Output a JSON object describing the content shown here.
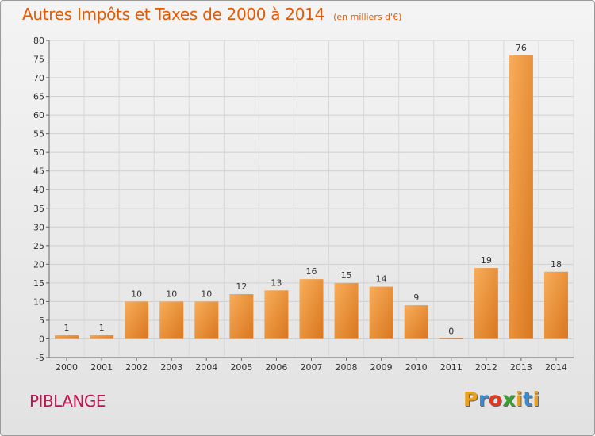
{
  "chart_data": {
    "type": "bar",
    "title": "Autres Impôts et Taxes de 2000 à 2014",
    "subtitle": "(en milliers d'€)",
    "categories": [
      "2000",
      "2001",
      "2002",
      "2003",
      "2004",
      "2005",
      "2006",
      "2007",
      "2008",
      "2009",
      "2010",
      "2011",
      "2012",
      "2013",
      "2014"
    ],
    "values": [
      1,
      1,
      10,
      10,
      10,
      12,
      13,
      16,
      15,
      14,
      9,
      0,
      19,
      76,
      18
    ],
    "ylim": [
      -5,
      80
    ],
    "yticks": [
      -5,
      0,
      5,
      10,
      15,
      20,
      25,
      30,
      35,
      40,
      45,
      50,
      55,
      60,
      65,
      70,
      75,
      80
    ],
    "grid": true,
    "bar_color": "#f09040",
    "xlabel": "",
    "ylabel": ""
  },
  "footer": {
    "commune": "PIBLANGE",
    "logo": [
      "P",
      "r",
      "o",
      "x",
      "i",
      "t",
      "i"
    ],
    "logo_colors": [
      "#e8a020",
      "#3a8ad0",
      "#e83820",
      "#3aa030",
      "#e8a020",
      "#3a8ad0",
      "#e8a020"
    ]
  }
}
